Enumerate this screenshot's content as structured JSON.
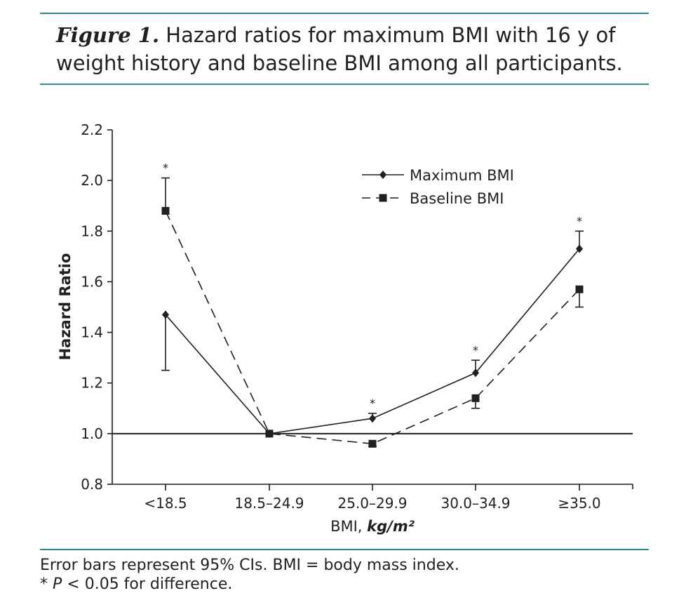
{
  "caption": {
    "figure_label": "Figure 1.",
    "text": "Hazard ratios for maximum BMI with 16 y of weight history and baseline BMI among all participants."
  },
  "footnote": {
    "line1": "Error bars represent 95% CIs. BMI = body mass index.",
    "line2_star": "* ",
    "line2_p": "P",
    "line2_rest": " < 0.05 for difference."
  },
  "colors": {
    "rule": "#2e8b84",
    "ink": "#231f20"
  },
  "chart_data": {
    "type": "line",
    "title": "",
    "xlabel": "BMI,",
    "xlabel_units": "kg/m²",
    "ylabel": "Hazard Ratio",
    "ylim": [
      0.8,
      2.2
    ],
    "yticks": [
      "0.8",
      "1.0",
      "1.2",
      "1.4",
      "1.6",
      "1.8",
      "2.0",
      "2.2"
    ],
    "categories": [
      "<18.5",
      "18.5–24.9",
      "25.0–29.9",
      "30.0–34.9",
      "≥35.0"
    ],
    "reference_line": 1.0,
    "legend_position": "top-right",
    "significance_marker": "*",
    "significant": [
      true,
      false,
      true,
      true,
      true
    ],
    "series": [
      {
        "name": "Maximum BMI",
        "marker": "diamond",
        "dash": "solid",
        "values": [
          1.47,
          1.0,
          1.06,
          1.24,
          1.73
        ],
        "ci_lower": [
          1.25,
          null,
          1.06,
          1.24,
          1.73
        ],
        "ci_upper": [
          1.47,
          null,
          1.08,
          1.29,
          1.8
        ]
      },
      {
        "name": "Baseline BMI",
        "marker": "square",
        "dash": "dashed",
        "values": [
          1.88,
          1.0,
          0.96,
          1.14,
          1.57
        ],
        "ci_lower": [
          1.88,
          null,
          0.95,
          1.1,
          1.5
        ],
        "ci_upper": [
          2.01,
          null,
          0.96,
          1.14,
          1.57
        ]
      }
    ]
  }
}
